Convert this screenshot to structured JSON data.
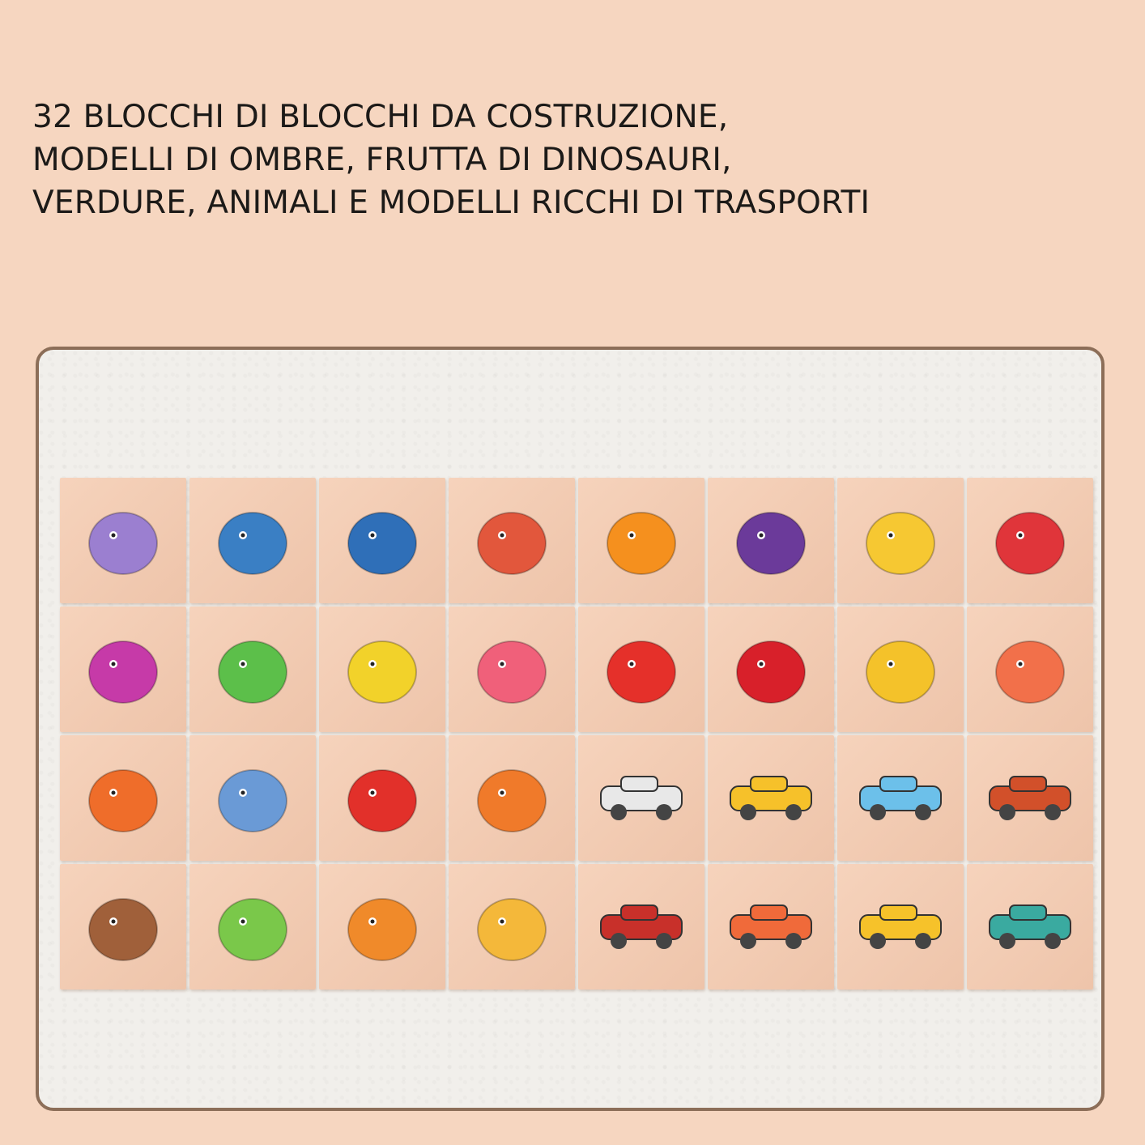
{
  "headline": {
    "lines": [
      "32 BLOCCHI DI BLOCCHI DA COSTRUZIONE,",
      "MODELLI DI OMBRE, FRUTTA DI DINOSAURI,",
      "VERDURE, ANIMALI E MODELLI RICCHI DI TRASPORTI"
    ]
  },
  "tiles": [
    {
      "icon": "triceratops-icon",
      "color": "#9b7fd0"
    },
    {
      "icon": "dinosaur-icon",
      "color": "#3a7fc4"
    },
    {
      "icon": "trex-icon",
      "color": "#2f6fb8"
    },
    {
      "icon": "parasaurolophus-icon",
      "color": "#e2573c"
    },
    {
      "icon": "orange-icon",
      "color": "#f5901e"
    },
    {
      "icon": "grapes-icon",
      "color": "#6b3a9a"
    },
    {
      "icon": "pineapple-icon",
      "color": "#f6c832"
    },
    {
      "icon": "strawberry-icon",
      "color": "#e0353a"
    },
    {
      "icon": "brachiosaurus-icon",
      "color": "#c63aa8"
    },
    {
      "icon": "pterodactyl-icon",
      "color": "#5cbf4a"
    },
    {
      "icon": "yellow-dinosaur-icon",
      "color": "#f2d22a"
    },
    {
      "icon": "pink-dinosaur-icon",
      "color": "#f0607a"
    },
    {
      "icon": "tomato-icon",
      "color": "#e5302a"
    },
    {
      "icon": "cherries-icon",
      "color": "#d8202a"
    },
    {
      "icon": "banana-icon",
      "color": "#f4c22a"
    },
    {
      "icon": "carrot-icon",
      "color": "#f2704a"
    },
    {
      "icon": "owl-icon",
      "color": "#ef6d2a"
    },
    {
      "icon": "elephant-icon",
      "color": "#6a9ad6"
    },
    {
      "icon": "ladybug-icon",
      "color": "#e2302a"
    },
    {
      "icon": "fox-icon",
      "color": "#f07a2a"
    },
    {
      "icon": "suv-icon",
      "color": "#e8e8e8"
    },
    {
      "icon": "yellow-car-icon",
      "color": "#f6c12a"
    },
    {
      "icon": "airplane-icon",
      "color": "#6cc0ea"
    },
    {
      "icon": "sports-car-icon",
      "color": "#d2502a"
    },
    {
      "icon": "monkey-icon",
      "color": "#a0603a"
    },
    {
      "icon": "frog-icon",
      "color": "#7ac84a"
    },
    {
      "icon": "lion-icon",
      "color": "#f08a2a"
    },
    {
      "icon": "giraffe-icon",
      "color": "#f4b83a"
    },
    {
      "icon": "pickup-truck-icon",
      "color": "#c8302a"
    },
    {
      "icon": "rocket-icon",
      "color": "#f06a3a"
    },
    {
      "icon": "taxi-icon",
      "color": "#f6c22a"
    },
    {
      "icon": "boat-icon",
      "color": "#3aaaa0"
    }
  ]
}
